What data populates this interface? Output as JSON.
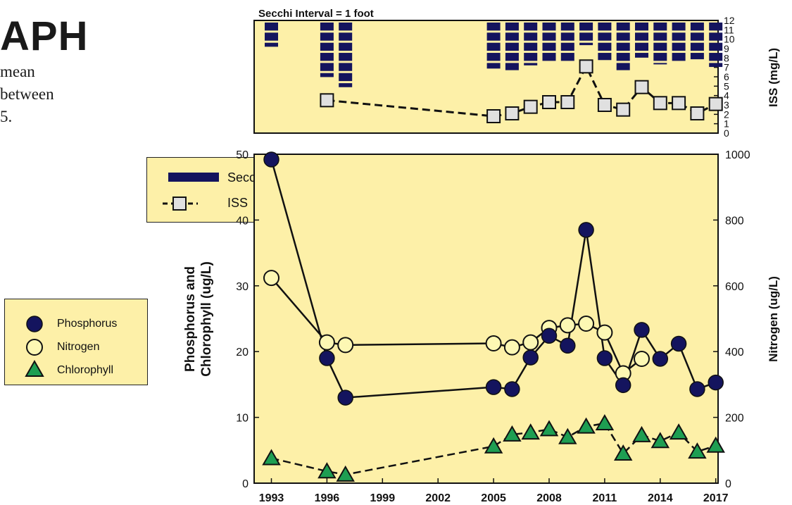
{
  "page": {
    "title_fragment": "APH",
    "description_lines": [
      "mean",
      "between",
      "5."
    ]
  },
  "legend_top": [
    {
      "label": "Secchi",
      "symbol": "bar"
    },
    {
      "label": "ISS",
      "symbol": "square-dashed"
    }
  ],
  "legend_bottom": [
    {
      "label": "Phosphorus",
      "symbol": "circle"
    },
    {
      "label": "Nitrogen",
      "symbol": "circle"
    },
    {
      "label": "Chlorophyll",
      "symbol": "triangle"
    }
  ],
  "colors": {
    "plot_bg": "#fdf0a8",
    "secchi": "#14145e",
    "iss_fill": "#e0e0e0",
    "phosphorus": "#14145e",
    "nitrogen": "#fdf8b4",
    "chlorophyll": "#1e9e52",
    "line": "#111111"
  },
  "chart_data": [
    {
      "type": "bar",
      "title": "Secchi Interval = 1 foot",
      "ylabel_right": "ISS (mg/L)",
      "ylim_right": [
        0,
        12
      ],
      "yticks_right": [
        "0",
        "1",
        "2",
        "3",
        "4",
        "5",
        "6",
        "7",
        "8",
        "9",
        "10",
        "11",
        "12"
      ],
      "secchi_interval_ft": 1,
      "secchi": [
        {
          "year": 1993,
          "depth": 2.5
        },
        {
          "year": 1996,
          "depth": 5.5
        },
        {
          "year": 1997,
          "depth": 6.5
        },
        {
          "year": 2005,
          "depth": 4.7
        },
        {
          "year": 2006,
          "depth": 4.9
        },
        {
          "year": 2007,
          "depth": 4.3
        },
        {
          "year": 2008,
          "depth": 4.0
        },
        {
          "year": 2009,
          "depth": 4.0
        },
        {
          "year": 2010,
          "depth": 2.3
        },
        {
          "year": 2011,
          "depth": 3.9
        },
        {
          "year": 2012,
          "depth": 4.9
        },
        {
          "year": 2013,
          "depth": 3.6
        },
        {
          "year": 2014,
          "depth": 4.1
        },
        {
          "year": 2015,
          "depth": 4.0
        },
        {
          "year": 2016,
          "depth": 3.8
        },
        {
          "year": 2017,
          "depth": 4.5
        }
      ],
      "iss": [
        {
          "year": 1996,
          "value": 3.5
        },
        {
          "year": 2005,
          "value": 1.8
        },
        {
          "year": 2006,
          "value": 2.1
        },
        {
          "year": 2007,
          "value": 2.8
        },
        {
          "year": 2008,
          "value": 3.3
        },
        {
          "year": 2009,
          "value": 3.3
        },
        {
          "year": 2010,
          "value": 7.1
        },
        {
          "year": 2011,
          "value": 3.0
        },
        {
          "year": 2012,
          "value": 2.5
        },
        {
          "year": 2013,
          "value": 4.9
        },
        {
          "year": 2014,
          "value": 3.2
        },
        {
          "year": 2015,
          "value": 3.2
        },
        {
          "year": 2016,
          "value": 2.1
        },
        {
          "year": 2017,
          "value": 3.1
        }
      ]
    },
    {
      "type": "line",
      "ylabel_left": [
        "Phosphorus and",
        "Chlorophyll (ug/L)"
      ],
      "ylabel_right": "Nitrogen (ug/L)",
      "ylim_left": [
        0,
        50
      ],
      "ylim_right": [
        0,
        1000
      ],
      "yticks_left": [
        "0",
        "10",
        "20",
        "30",
        "40",
        "50"
      ],
      "yticks_right": [
        "0",
        "200",
        "400",
        "600",
        "800",
        "1000"
      ],
      "xlim": [
        1993,
        2017
      ],
      "xticks": [
        "1993",
        "1996",
        "1999",
        "2002",
        "2005",
        "2008",
        "2011",
        "2014",
        "2017"
      ],
      "series": [
        {
          "name": "Phosphorus",
          "axis": "left",
          "style": "solid",
          "marker": "circle",
          "points": [
            [
              1993,
              49.2
            ],
            [
              1996,
              19.0
            ],
            [
              1997,
              13.0
            ],
            [
              2005,
              14.6
            ],
            [
              2006,
              14.3
            ],
            [
              2007,
              19.1
            ],
            [
              2008,
              22.4
            ],
            [
              2009,
              20.9
            ],
            [
              2010,
              38.5
            ],
            [
              2011,
              19.0
            ],
            [
              2012,
              14.9
            ],
            [
              2013,
              23.3
            ],
            [
              2014,
              18.9
            ],
            [
              2015,
              21.2
            ],
            [
              2016,
              14.3
            ],
            [
              2017,
              15.3
            ]
          ]
        },
        {
          "name": "Nitrogen",
          "axis": "right",
          "style": "solid",
          "marker": "circle",
          "points": [
            [
              1993,
              624
            ],
            [
              1996,
              428
            ],
            [
              1997,
              420
            ],
            [
              2005,
              425
            ],
            [
              2006,
              413
            ],
            [
              2007,
              428
            ],
            [
              2008,
              472
            ],
            [
              2009,
              480
            ],
            [
              2010,
              485
            ],
            [
              2011,
              458
            ],
            [
              2012,
              334
            ],
            [
              2013,
              378
            ]
          ]
        },
        {
          "name": "Chlorophyll",
          "axis": "left",
          "style": "dashed",
          "marker": "triangle",
          "points": [
            [
              1993,
              3.8
            ],
            [
              1996,
              1.8
            ],
            [
              1997,
              1.3
            ],
            [
              2005,
              5.6
            ],
            [
              2006,
              7.4
            ],
            [
              2007,
              7.7
            ],
            [
              2008,
              8.2
            ],
            [
              2009,
              7.0
            ],
            [
              2010,
              8.6
            ],
            [
              2011,
              9.1
            ],
            [
              2012,
              4.5
            ],
            [
              2013,
              7.3
            ],
            [
              2014,
              6.4
            ],
            [
              2015,
              7.7
            ],
            [
              2016,
              4.8
            ],
            [
              2017,
              5.7
            ]
          ]
        }
      ]
    }
  ]
}
